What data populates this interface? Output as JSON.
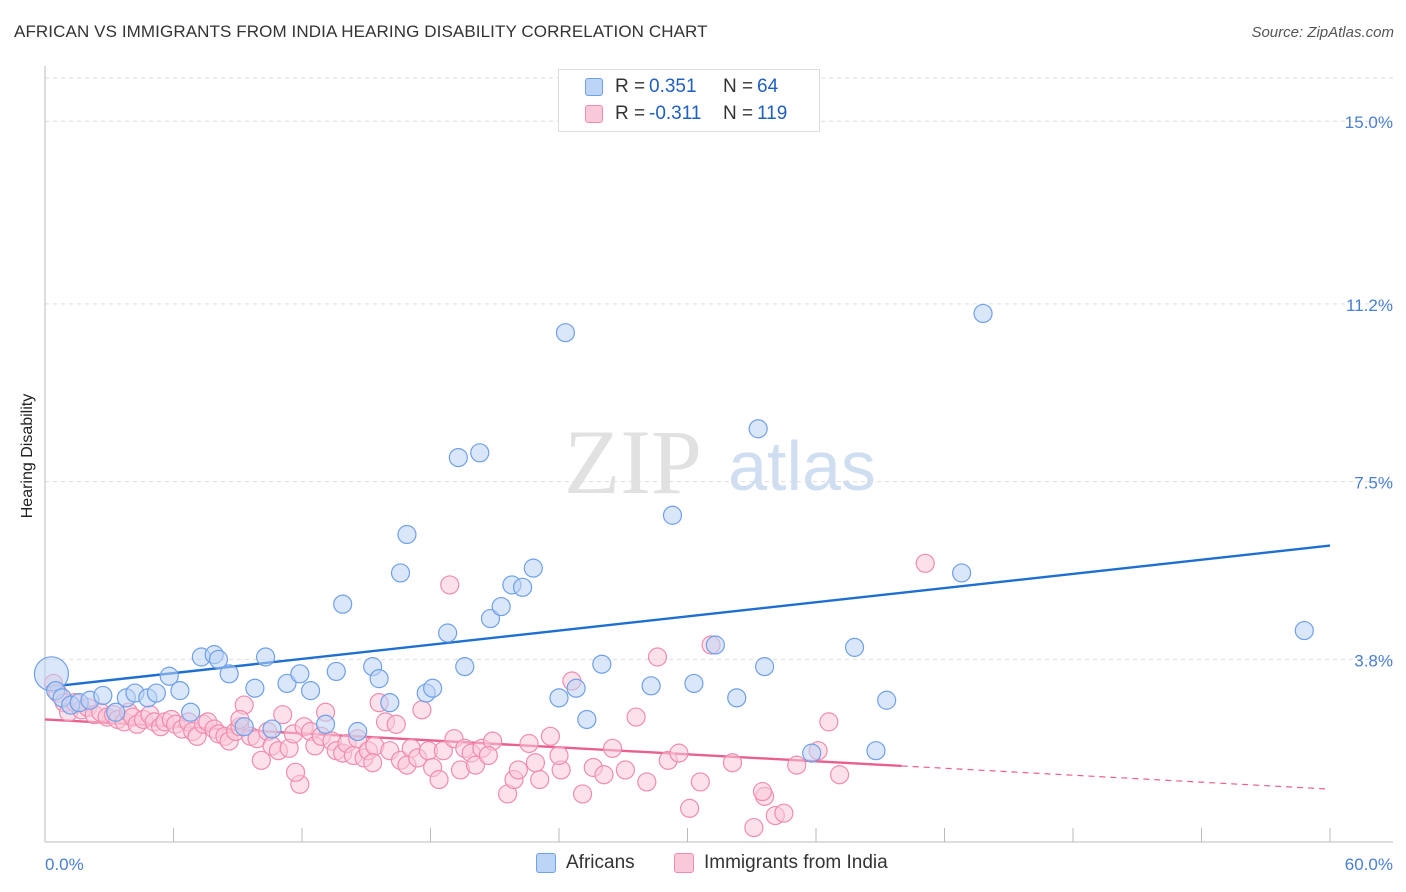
{
  "title": "AFRICAN VS IMMIGRANTS FROM INDIA HEARING DISABILITY CORRELATION CHART",
  "source": "Source: ZipAtlas.com",
  "watermark": {
    "zip": "ZIP",
    "atlas": "atlas"
  },
  "legend_stats": [
    {
      "r_label": "R =",
      "r_value": "0.351",
      "n_label": "N =",
      "n_value": "64",
      "color": "#6fa0e8",
      "fill": "#bcd4f5"
    },
    {
      "r_label": "R =",
      "r_value": "-0.311",
      "n_label": "N =",
      "n_value": "119",
      "color": "#f08cb0",
      "fill": "#f9c9d9"
    }
  ],
  "chart_data": {
    "type": "scatter",
    "title": "AFRICAN VS IMMIGRANTS FROM INDIA HEARING DISABILITY CORRELATION CHART",
    "xlabel": "",
    "ylabel": "Hearing Disability",
    "xlim": [
      0,
      60
    ],
    "ylim": [
      0,
      15.9
    ],
    "x_tick_labels": [
      "0.0%",
      "60.0%"
    ],
    "y_ticks": [
      3.8,
      7.5,
      11.2,
      15.0
    ],
    "y_tick_labels": [
      "3.8%",
      "7.5%",
      "11.2%",
      "15.0%"
    ],
    "grid": "horizontal dashed",
    "legend_placement": "bottom-center",
    "series": [
      {
        "name": "Africans",
        "color": "#6fa0e8",
        "fill": "#bcd4f5",
        "trend": {
          "x": [
            0,
            60
          ],
          "y": [
            3.22,
            6.17
          ],
          "dash_from": null
        },
        "points": [
          [
            0.3,
            3.5
          ],
          [
            0.5,
            3.15
          ],
          [
            0.8,
            3.0
          ],
          [
            1.2,
            2.85
          ],
          [
            1.6,
            2.9
          ],
          [
            2.1,
            2.95
          ],
          [
            2.7,
            3.05
          ],
          [
            3.3,
            2.7
          ],
          [
            3.8,
            3.0
          ],
          [
            4.2,
            3.1
          ],
          [
            4.8,
            3.0
          ],
          [
            5.2,
            3.1
          ],
          [
            5.8,
            3.45
          ],
          [
            6.3,
            3.15
          ],
          [
            6.8,
            2.7
          ],
          [
            7.3,
            3.85
          ],
          [
            7.9,
            3.9
          ],
          [
            8.1,
            3.8
          ],
          [
            8.6,
            3.5
          ],
          [
            9.3,
            2.4
          ],
          [
            9.8,
            3.2
          ],
          [
            10.3,
            3.85
          ],
          [
            10.6,
            2.35
          ],
          [
            11.3,
            3.3
          ],
          [
            11.9,
            3.5
          ],
          [
            12.4,
            3.15
          ],
          [
            13.1,
            2.45
          ],
          [
            13.6,
            3.55
          ],
          [
            13.9,
            4.95
          ],
          [
            14.6,
            2.3
          ],
          [
            15.3,
            3.65
          ],
          [
            15.6,
            3.4
          ],
          [
            16.1,
            2.9
          ],
          [
            16.6,
            5.6
          ],
          [
            16.9,
            6.4
          ],
          [
            17.8,
            3.1
          ],
          [
            18.1,
            3.2
          ],
          [
            18.8,
            4.35
          ],
          [
            19.6,
            3.65
          ],
          [
            19.3,
            8.0
          ],
          [
            20.3,
            8.1
          ],
          [
            20.8,
            4.65
          ],
          [
            21.3,
            4.9
          ],
          [
            21.8,
            5.35
          ],
          [
            22.3,
            5.3
          ],
          [
            22.8,
            5.7
          ],
          [
            24.0,
            3.0
          ],
          [
            24.3,
            10.6
          ],
          [
            24.8,
            3.2
          ],
          [
            25.3,
            2.55
          ],
          [
            26.0,
            3.7
          ],
          [
            28.3,
            3.25
          ],
          [
            29.3,
            6.8
          ],
          [
            30.3,
            3.3
          ],
          [
            31.3,
            4.1
          ],
          [
            32.3,
            3.0
          ],
          [
            33.3,
            8.6
          ],
          [
            33.6,
            3.65
          ],
          [
            35.8,
            1.85
          ],
          [
            37.8,
            4.05
          ],
          [
            38.8,
            1.9
          ],
          [
            39.3,
            2.95
          ],
          [
            42.8,
            5.6
          ],
          [
            43.8,
            11.0
          ],
          [
            58.8,
            4.4
          ]
        ]
      },
      {
        "name": "Immigrants from India",
        "color": "#f08cb0",
        "fill": "#f9c9d9",
        "trend": {
          "x": [
            0,
            60
          ],
          "y": [
            2.55,
            1.1
          ],
          "dash_from": 40
        },
        "points": [
          [
            0.4,
            3.3
          ],
          [
            0.6,
            3.1
          ],
          [
            0.9,
            2.9
          ],
          [
            1.1,
            2.7
          ],
          [
            1.4,
            2.9
          ],
          [
            1.7,
            2.75
          ],
          [
            2.0,
            2.8
          ],
          [
            2.3,
            2.65
          ],
          [
            2.6,
            2.7
          ],
          [
            2.9,
            2.6
          ],
          [
            3.2,
            2.65
          ],
          [
            3.4,
            2.55
          ],
          [
            3.7,
            2.5
          ],
          [
            3.9,
            2.7
          ],
          [
            4.1,
            2.6
          ],
          [
            4.3,
            2.45
          ],
          [
            4.6,
            2.55
          ],
          [
            4.9,
            2.65
          ],
          [
            5.1,
            2.5
          ],
          [
            5.4,
            2.4
          ],
          [
            5.6,
            2.5
          ],
          [
            5.9,
            2.55
          ],
          [
            6.1,
            2.45
          ],
          [
            6.4,
            2.35
          ],
          [
            6.7,
            2.5
          ],
          [
            6.9,
            2.3
          ],
          [
            7.1,
            2.2
          ],
          [
            7.4,
            2.45
          ],
          [
            7.6,
            2.5
          ],
          [
            7.9,
            2.35
          ],
          [
            8.1,
            2.25
          ],
          [
            8.4,
            2.2
          ],
          [
            8.6,
            2.1
          ],
          [
            8.9,
            2.3
          ],
          [
            9.1,
            2.4
          ],
          [
            9.3,
            2.85
          ],
          [
            9.6,
            2.2
          ],
          [
            9.9,
            2.15
          ],
          [
            10.1,
            1.7
          ],
          [
            10.4,
            2.3
          ],
          [
            10.6,
            2.0
          ],
          [
            10.9,
            1.9
          ],
          [
            11.1,
            2.65
          ],
          [
            11.4,
            1.95
          ],
          [
            11.6,
            2.25
          ],
          [
            11.9,
            1.2
          ],
          [
            12.1,
            2.4
          ],
          [
            12.4,
            2.3
          ],
          [
            12.6,
            2.0
          ],
          [
            12.9,
            2.2
          ],
          [
            13.1,
            2.7
          ],
          [
            13.4,
            2.1
          ],
          [
            13.6,
            1.9
          ],
          [
            13.9,
            1.85
          ],
          [
            14.1,
            2.05
          ],
          [
            14.4,
            1.8
          ],
          [
            14.6,
            2.15
          ],
          [
            14.9,
            1.75
          ],
          [
            15.1,
            1.9
          ],
          [
            15.4,
            2.0
          ],
          [
            15.6,
            2.9
          ],
          [
            15.9,
            2.5
          ],
          [
            16.1,
            1.9
          ],
          [
            16.4,
            2.45
          ],
          [
            16.6,
            1.7
          ],
          [
            16.9,
            1.6
          ],
          [
            17.1,
            1.95
          ],
          [
            17.4,
            1.75
          ],
          [
            17.6,
            2.75
          ],
          [
            17.9,
            1.9
          ],
          [
            18.1,
            1.55
          ],
          [
            18.4,
            1.3
          ],
          [
            18.6,
            1.9
          ],
          [
            18.9,
            5.35
          ],
          [
            19.1,
            2.15
          ],
          [
            19.4,
            1.5
          ],
          [
            19.6,
            1.95
          ],
          [
            19.9,
            1.85
          ],
          [
            20.1,
            1.6
          ],
          [
            20.4,
            1.95
          ],
          [
            20.9,
            2.1
          ],
          [
            21.6,
            1.0
          ],
          [
            21.9,
            1.3
          ],
          [
            22.1,
            1.5
          ],
          [
            22.6,
            2.05
          ],
          [
            23.1,
            1.3
          ],
          [
            23.6,
            2.2
          ],
          [
            24.1,
            1.5
          ],
          [
            24.6,
            3.35
          ],
          [
            25.1,
            1.0
          ],
          [
            25.6,
            1.55
          ],
          [
            26.1,
            1.4
          ],
          [
            27.1,
            1.5
          ],
          [
            27.6,
            2.6
          ],
          [
            28.1,
            1.25
          ],
          [
            28.6,
            3.85
          ],
          [
            29.1,
            1.7
          ],
          [
            29.6,
            1.85
          ],
          [
            30.1,
            0.7
          ],
          [
            30.6,
            1.25
          ],
          [
            31.1,
            4.1
          ],
          [
            32.1,
            1.65
          ],
          [
            33.1,
            0.3
          ],
          [
            33.6,
            0.95
          ],
          [
            34.1,
            0.55
          ],
          [
            35.1,
            1.6
          ],
          [
            36.1,
            1.9
          ],
          [
            36.6,
            2.5
          ],
          [
            37.1,
            1.4
          ],
          [
            41.1,
            5.8
          ],
          [
            33.5,
            1.05
          ],
          [
            24.0,
            1.8
          ],
          [
            26.5,
            1.95
          ],
          [
            11.7,
            1.45
          ],
          [
            9.1,
            2.55
          ],
          [
            15.3,
            1.65
          ],
          [
            20.7,
            1.8
          ],
          [
            22.9,
            1.65
          ],
          [
            34.5,
            0.6
          ]
        ]
      }
    ]
  }
}
